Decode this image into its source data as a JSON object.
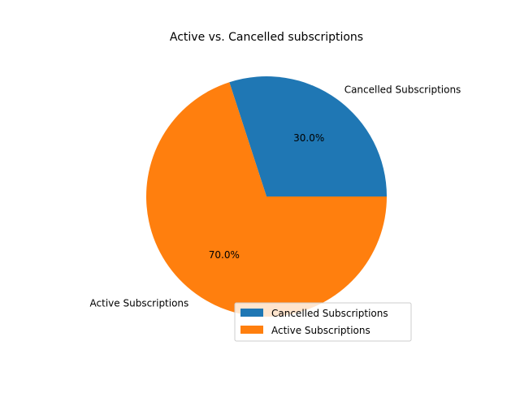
{
  "chart_data": {
    "type": "pie",
    "title": "Active vs. Cancelled subscriptions",
    "categories": [
      "Cancelled Subscriptions",
      "Active Subscriptions"
    ],
    "values": [
      30.0,
      70.0
    ],
    "percent_labels": [
      "30.0%",
      "70.0%"
    ],
    "colors": [
      "#1f77b4",
      "#ff7f0e"
    ],
    "start_angle_deg": 0,
    "direction": "counterclockwise",
    "legend": {
      "placement": "lower-right",
      "entries": [
        "Cancelled Subscriptions",
        "Active Subscriptions"
      ]
    }
  }
}
